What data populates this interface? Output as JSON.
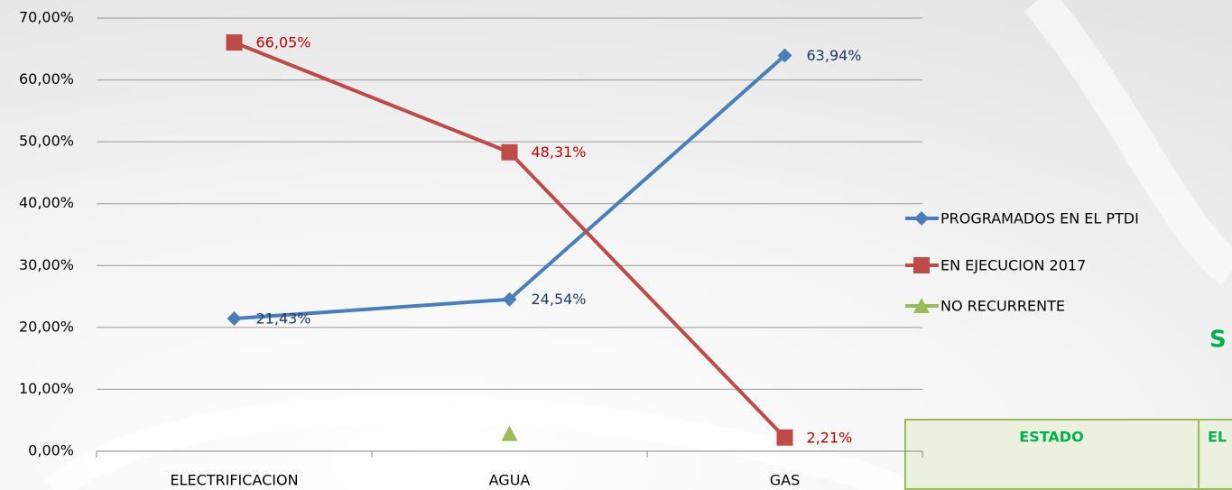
{
  "chart_data": {
    "type": "line",
    "categories": [
      "ELECTRIFICACION",
      "AGUA",
      "GAS"
    ],
    "series": [
      {
        "name": "PROGRAMADOS EN EL PTDI",
        "color": "#4a7ebb",
        "marker": "diamond",
        "label_color": "#1f3864",
        "values": [
          21.43,
          24.54,
          63.94
        ],
        "value_labels": [
          "21,43%",
          "24,54%",
          "63,94%"
        ]
      },
      {
        "name": "EN EJECUCION 2017",
        "color": "#be4b48",
        "marker": "square",
        "label_color": "#c00000",
        "values": [
          66.05,
          48.31,
          2.21
        ],
        "value_labels": [
          "66,05%",
          "48,31%",
          "2,21%"
        ]
      },
      {
        "name": "NO RECURRENTE",
        "color": "#9bbb59",
        "marker": "triangle",
        "values": [
          null,
          2.8,
          null
        ]
      }
    ],
    "ylim": [
      0,
      70
    ],
    "yticks": [
      {
        "value": 0,
        "label": "0,00%"
      },
      {
        "value": 10,
        "label": "10,00%"
      },
      {
        "value": 20,
        "label": "20,00%"
      },
      {
        "value": 30,
        "label": "30,00%"
      },
      {
        "value": 40,
        "label": "40,00%"
      },
      {
        "value": 50,
        "label": "50,00%"
      },
      {
        "value": 60,
        "label": "60,00%"
      },
      {
        "value": 70,
        "label": "70,00%"
      }
    ],
    "grid": true,
    "legend": "right"
  },
  "side_title": "S",
  "table": {
    "headers": [
      "ESTADO",
      "EL"
    ]
  }
}
